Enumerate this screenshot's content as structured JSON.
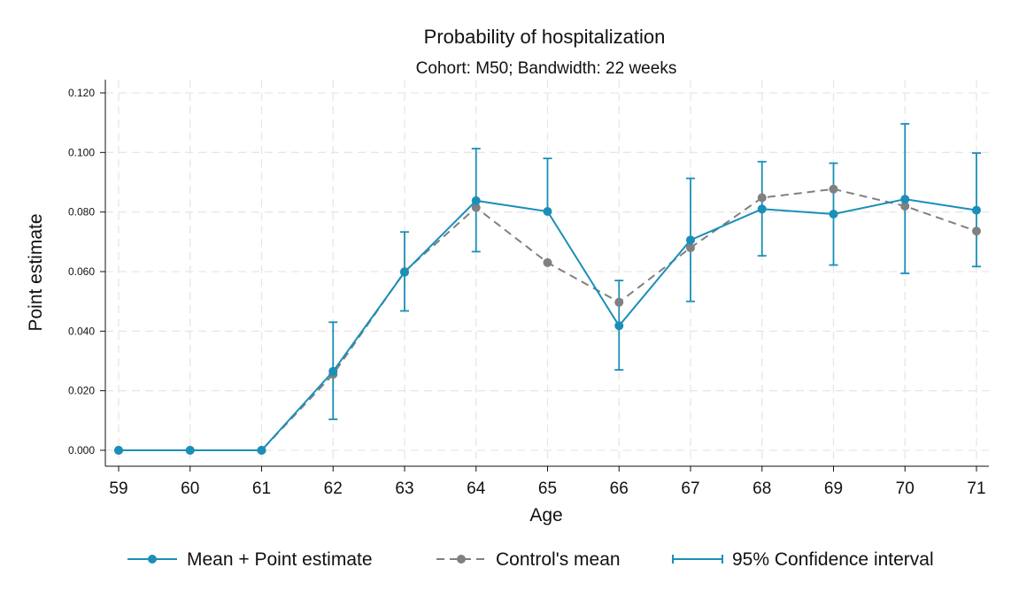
{
  "chart_data": {
    "type": "line",
    "title": "Probability of hospitalization",
    "subtitle": "Cohort: M50; Bandwidth: 22 weeks",
    "xlabel": "Age",
    "ylabel": "Point estimate",
    "x": [
      59,
      60,
      61,
      62,
      63,
      64,
      65,
      66,
      67,
      68,
      69,
      70,
      71
    ],
    "xlim": [
      59,
      71
    ],
    "ylim": [
      0,
      0.12
    ],
    "yticks": [
      "0.000",
      "0.020",
      "0.040",
      "0.060",
      "0.080",
      "0.100",
      "0.120"
    ],
    "grid": true,
    "legend_position": "bottom",
    "series": [
      {
        "name": "Mean + Point estimate",
        "color": "#1a8fb8",
        "style": "solid",
        "values": [
          0.0,
          0.0,
          0.0,
          0.0265,
          0.0598,
          0.0838,
          0.0802,
          0.0418,
          0.0706,
          0.081,
          0.0793,
          0.0843,
          0.0806
        ]
      },
      {
        "name": "Control's mean",
        "color": "#808080",
        "style": "dashed",
        "values": [
          0.0,
          0.0,
          0.0,
          0.0255,
          0.06,
          0.0815,
          0.063,
          0.0497,
          0.068,
          0.0848,
          0.0877,
          0.082,
          0.0736
        ]
      }
    ],
    "confidence_interval": {
      "name": "95% Confidence interval",
      "color": "#1a8fb8",
      "lower": [
        null,
        null,
        null,
        0.0104,
        0.0468,
        0.0667,
        null,
        0.027,
        0.05,
        0.0653,
        0.0622,
        0.0594,
        0.0617
      ],
      "upper": [
        null,
        null,
        null,
        0.043,
        0.0733,
        0.1013,
        0.098,
        0.057,
        0.0913,
        0.0969,
        0.0964,
        0.1096,
        0.0998
      ]
    }
  }
}
